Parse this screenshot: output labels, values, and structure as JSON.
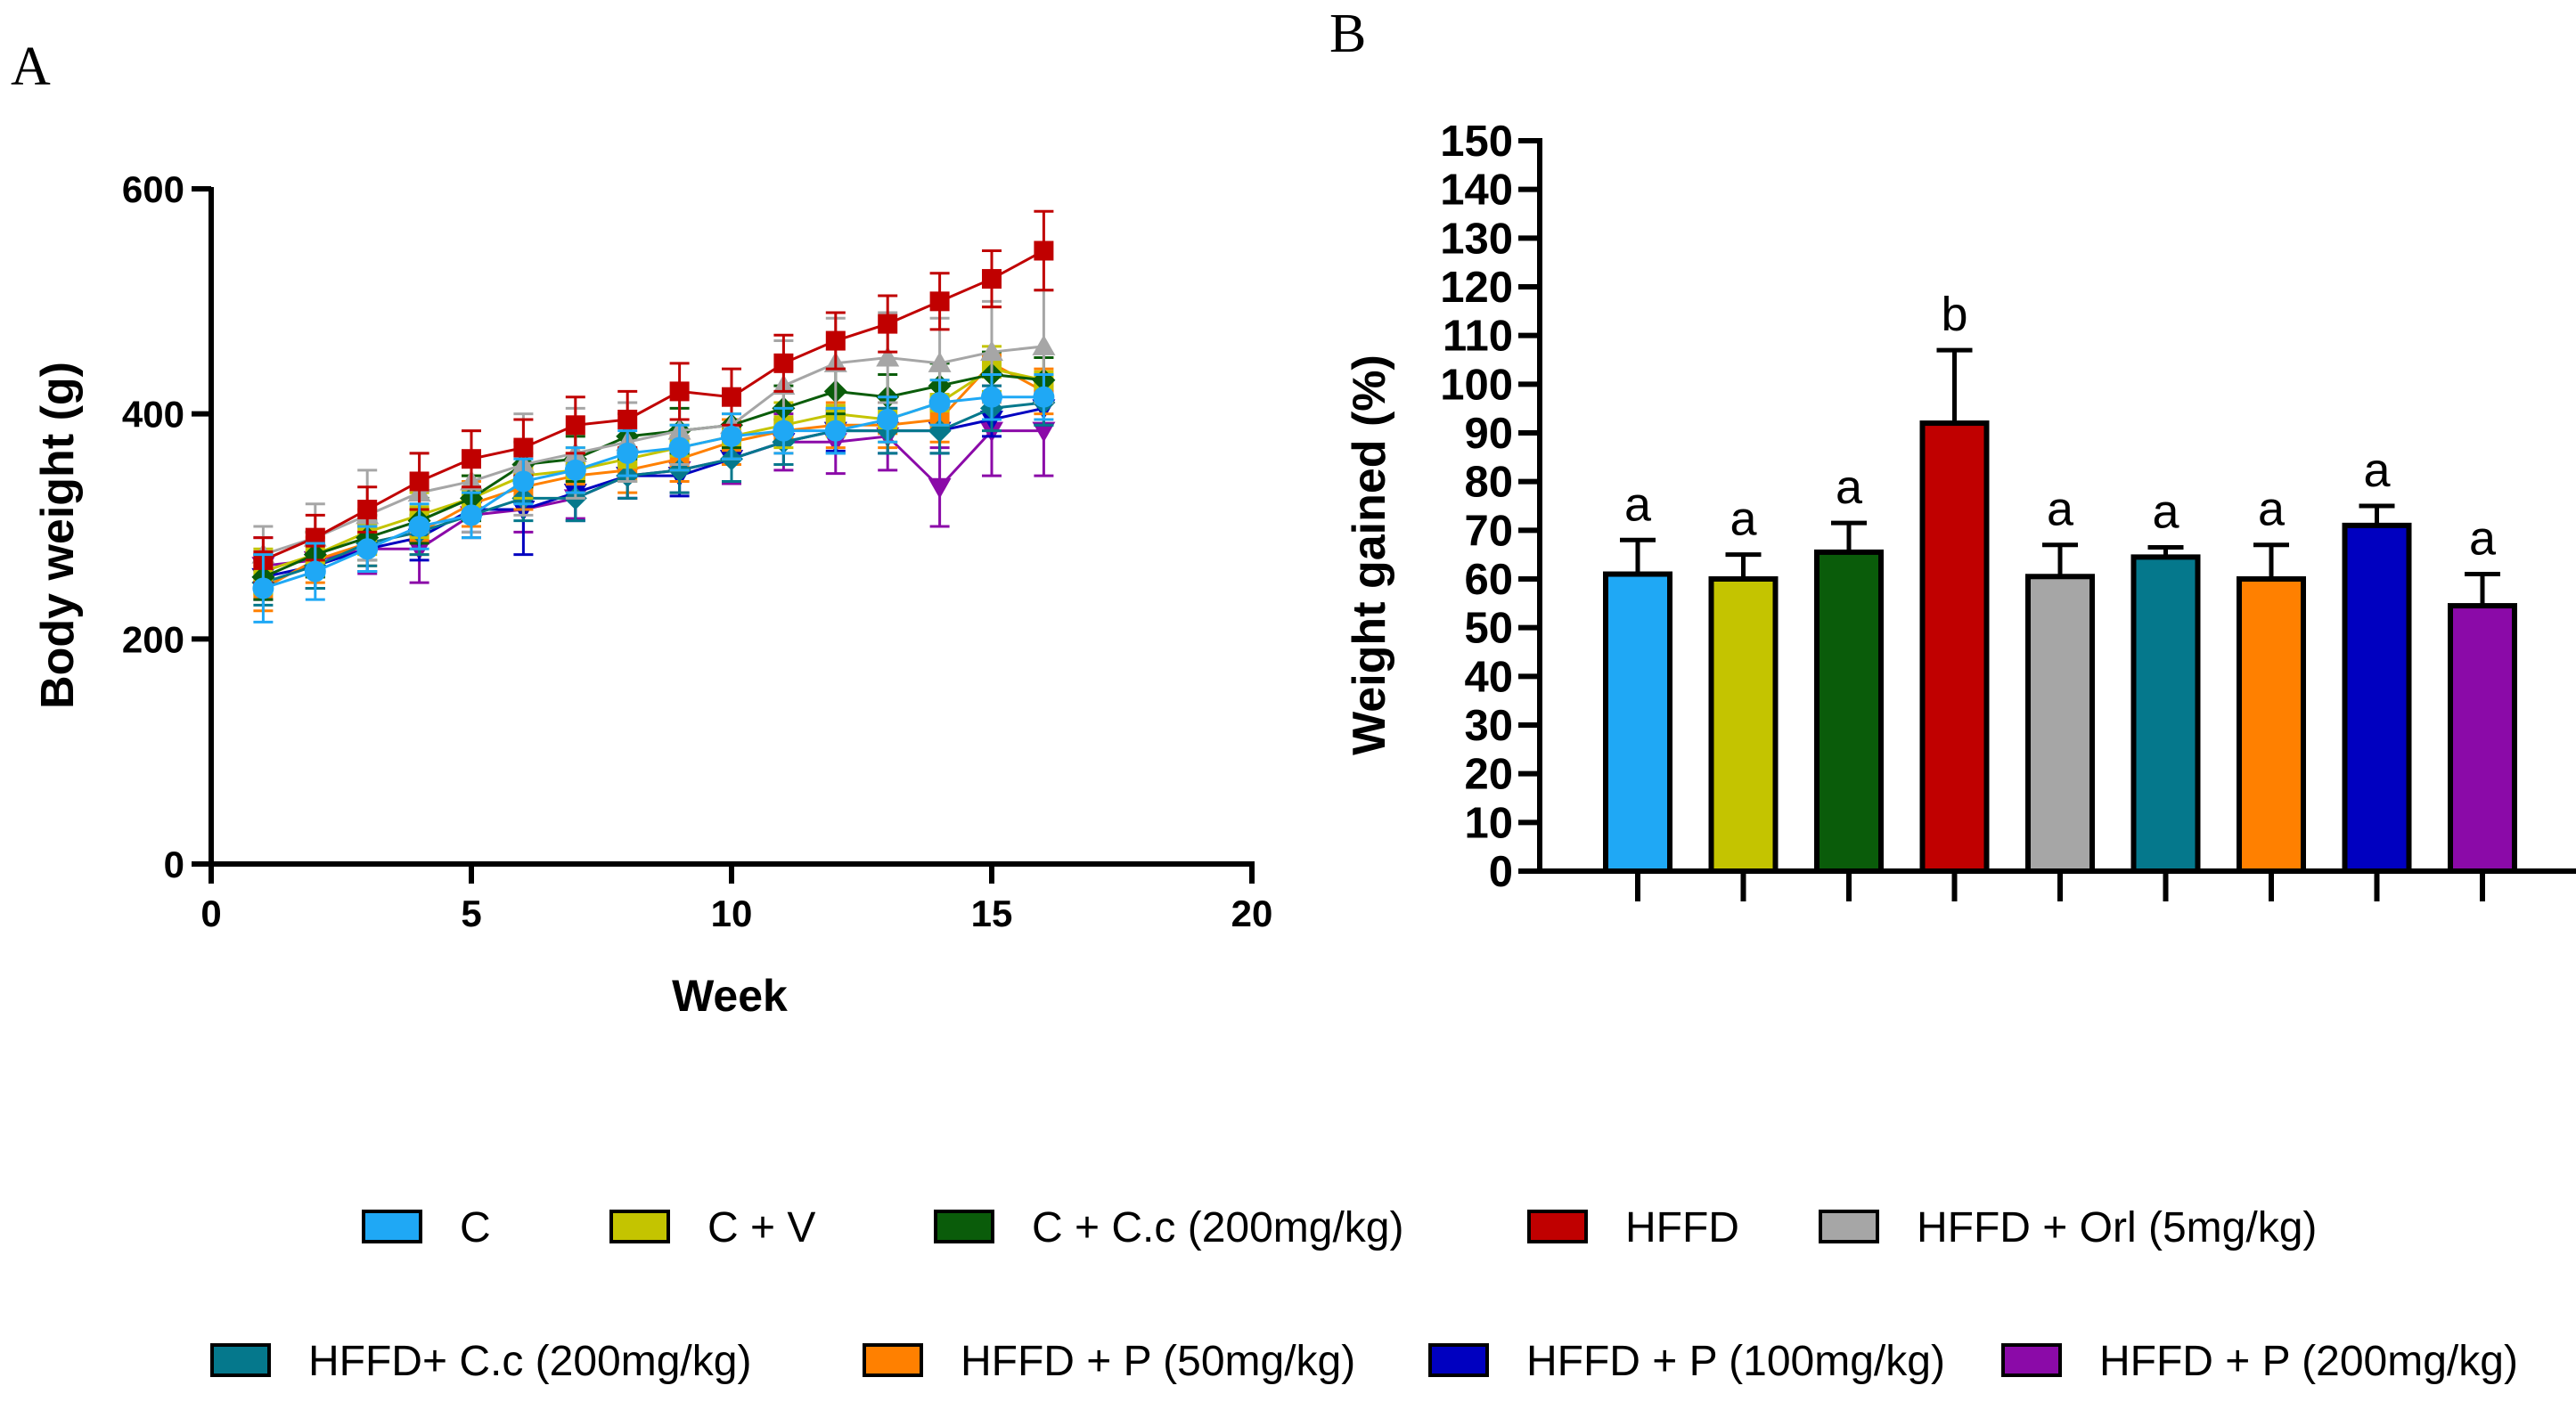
{
  "panels": {
    "a_letter": "A",
    "b_letter": "B"
  },
  "colors": {
    "C": "#1fa8f5",
    "C + V": "#c4c400",
    "C + C.c (200mg/kg)": "#0a5c0a",
    "HFFD": "#c00000",
    "HFFD + Orl (5mg/kg)": "#a6a6a6",
    "HFFD+ C.c (200mg/kg)": "#05788c",
    "HFFD + P (50mg/kg)": "#ff8000",
    "HFFD + P (100mg/kg)": "#0000c0",
    "HFFD + P (200mg/kg)": "#8b0aa8"
  },
  "legend": [
    "C",
    "C + V",
    "C + C.c (200mg/kg)",
    "HFFD",
    "HFFD + Orl (5mg/kg)",
    "HFFD+ C.c (200mg/kg)",
    "HFFD + P (50mg/kg)",
    "HFFD + P (100mg/kg)",
    "HFFD + P (200mg/kg)"
  ],
  "chart_data": [
    {
      "type": "line",
      "panel": "A",
      "title": "",
      "xlabel": "Week",
      "ylabel": "Body weight (g)",
      "xlim": [
        0,
        20
      ],
      "ylim": [
        0,
        600
      ],
      "xticks": [
        0,
        5,
        10,
        15,
        20
      ],
      "yticks": [
        0,
        200,
        400,
        600
      ],
      "x": [
        1,
        2,
        3,
        4,
        5,
        6,
        7,
        8,
        9,
        10,
        11,
        12,
        13,
        14,
        15,
        16
      ],
      "series": [
        {
          "name": "HFFD + P (200mg/kg)",
          "marker": "triangle-down",
          "values": [
            265,
            270,
            280,
            280,
            310,
            315,
            325,
            345,
            350,
            360,
            375,
            375,
            380,
            335,
            385,
            385
          ],
          "errors": [
            25,
            25,
            22,
            30,
            20,
            20,
            18,
            20,
            20,
            22,
            25,
            28,
            30,
            35,
            40,
            40
          ]
        },
        {
          "name": "HFFD + P (100mg/kg)",
          "marker": "triangle-down",
          "values": [
            255,
            265,
            280,
            290,
            315,
            315,
            330,
            345,
            345,
            360,
            375,
            385,
            385,
            385,
            395,
            405
          ],
          "errors": [
            20,
            20,
            20,
            20,
            20,
            40,
            25,
            20,
            18,
            20,
            20,
            18,
            20,
            20,
            15,
            15
          ]
        },
        {
          "name": "HFFD + P (50mg/kg)",
          "marker": "square",
          "values": [
            245,
            270,
            285,
            295,
            320,
            335,
            345,
            350,
            360,
            375,
            385,
            390,
            390,
            395,
            445,
            420
          ],
          "errors": [
            20,
            20,
            20,
            20,
            20,
            20,
            20,
            20,
            20,
            20,
            20,
            20,
            20,
            20,
            50,
            20
          ]
        },
        {
          "name": "HFFD+ C.c (200mg/kg)",
          "marker": "diamond",
          "values": [
            250,
            265,
            285,
            295,
            310,
            325,
            325,
            345,
            350,
            360,
            375,
            385,
            385,
            385,
            405,
            410
          ],
          "errors": [
            20,
            20,
            20,
            20,
            20,
            20,
            20,
            20,
            20,
            20,
            20,
            20,
            20,
            20,
            20,
            20
          ]
        },
        {
          "name": "C + V",
          "marker": "square",
          "values": [
            260,
            275,
            295,
            310,
            325,
            345,
            350,
            360,
            370,
            380,
            390,
            400,
            395,
            410,
            440,
            430
          ],
          "errors": [
            20,
            20,
            20,
            20,
            20,
            20,
            20,
            20,
            20,
            20,
            20,
            20,
            20,
            20,
            20,
            20
          ]
        },
        {
          "name": "C + C.c (200mg/kg)",
          "marker": "diamond",
          "values": [
            255,
            275,
            290,
            305,
            325,
            355,
            360,
            380,
            385,
            390,
            405,
            420,
            415,
            425,
            435,
            430
          ],
          "errors": [
            20,
            20,
            20,
            20,
            20,
            20,
            20,
            20,
            20,
            20,
            20,
            20,
            20,
            20,
            20,
            20
          ]
        },
        {
          "name": "HFFD + Orl (5mg/kg)",
          "marker": "triangle-up",
          "values": [
            275,
            290,
            310,
            330,
            340,
            355,
            365,
            375,
            385,
            390,
            425,
            445,
            450,
            445,
            455,
            460
          ],
          "errors": [
            25,
            30,
            40,
            35,
            45,
            45,
            40,
            35,
            30,
            30,
            40,
            40,
            40,
            40,
            45,
            50
          ]
        },
        {
          "name": "HFFD",
          "marker": "square",
          "values": [
            270,
            290,
            315,
            340,
            360,
            370,
            390,
            395,
            420,
            415,
            445,
            465,
            480,
            500,
            520,
            545
          ],
          "errors": [
            20,
            20,
            20,
            25,
            25,
            25,
            25,
            25,
            25,
            25,
            25,
            25,
            25,
            25,
            25,
            35
          ]
        },
        {
          "name": "C",
          "marker": "circle",
          "values": [
            245,
            260,
            280,
            300,
            310,
            340,
            350,
            365,
            370,
            380,
            385,
            385,
            395,
            410,
            415,
            415
          ],
          "errors": [
            30,
            25,
            20,
            20,
            20,
            20,
            20,
            20,
            20,
            20,
            20,
            20,
            20,
            20,
            20,
            20
          ]
        }
      ]
    },
    {
      "type": "bar",
      "panel": "B",
      "title": "",
      "xlabel": "",
      "ylabel": "Weight gained (%)",
      "ylim": [
        0,
        150
      ],
      "yticks": [
        0,
        10,
        20,
        30,
        40,
        50,
        60,
        70,
        80,
        90,
        100,
        110,
        120,
        130,
        140,
        150
      ],
      "categories": [
        "C",
        "C + V",
        "C + C.c (200mg/kg)",
        "HFFD",
        "HFFD + Orl (5mg/kg)",
        "HFFD+ C.c (200mg/kg)",
        "HFFD + P (50mg/kg)",
        "HFFD + P (100mg/kg)",
        "HFFD + P (200mg/kg)"
      ],
      "values": [
        61,
        60,
        65.5,
        92,
        60.5,
        64.5,
        60,
        71,
        54.5
      ],
      "errors": [
        7,
        5,
        6,
        15,
        6.5,
        2,
        7,
        4,
        6.5
      ],
      "significance": [
        "a",
        "a",
        "a",
        "b",
        "a",
        "a",
        "a",
        "a",
        "a"
      ]
    }
  ]
}
